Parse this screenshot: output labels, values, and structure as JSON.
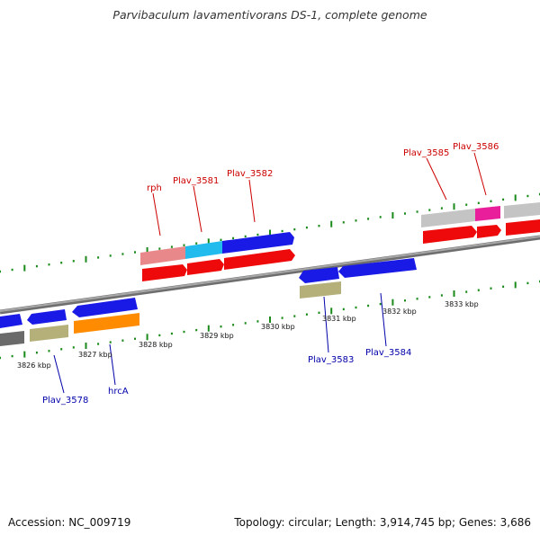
{
  "title": "Parvibaculum lavamentivorans DS-1, complete genome",
  "footer": {
    "accession": "Accession: NC_009719",
    "stats": "Topology: circular; Length: 3,914,745 bp; Genes: 3,686"
  },
  "colors": {
    "backbone": "#8a8a8a",
    "tick": "#1a8a1a",
    "label_top": "#cc0000",
    "label_bottom": "#0000aa",
    "gene_blue": "#1a1ae6",
    "gene_red": "#ee0a0a",
    "gene_olive": "#b5b07a",
    "gene_orange": "#ff8c00",
    "gene_grey": "#c4c4c4",
    "gene_pink": "#e8888a",
    "gene_cyan": "#22bbee",
    "gene_magenta": "#e81e9a",
    "gene_dark": "#6a6a6a"
  },
  "scale_labels": [
    "3826 kbp",
    "3827 kbp",
    "3828 kbp",
    "3829 kbp",
    "3830 kbp",
    "3831 kbp",
    "3832 kbp",
    "3833 kbp"
  ],
  "gene_labels_top": [
    "rph",
    "Plav_3581",
    "Plav_3582",
    "Plav_3585",
    "Plav_3586"
  ],
  "gene_labels_bottom": [
    "Plav_3578",
    "hrcA",
    "Plav_3583",
    "Plav_3584"
  ]
}
